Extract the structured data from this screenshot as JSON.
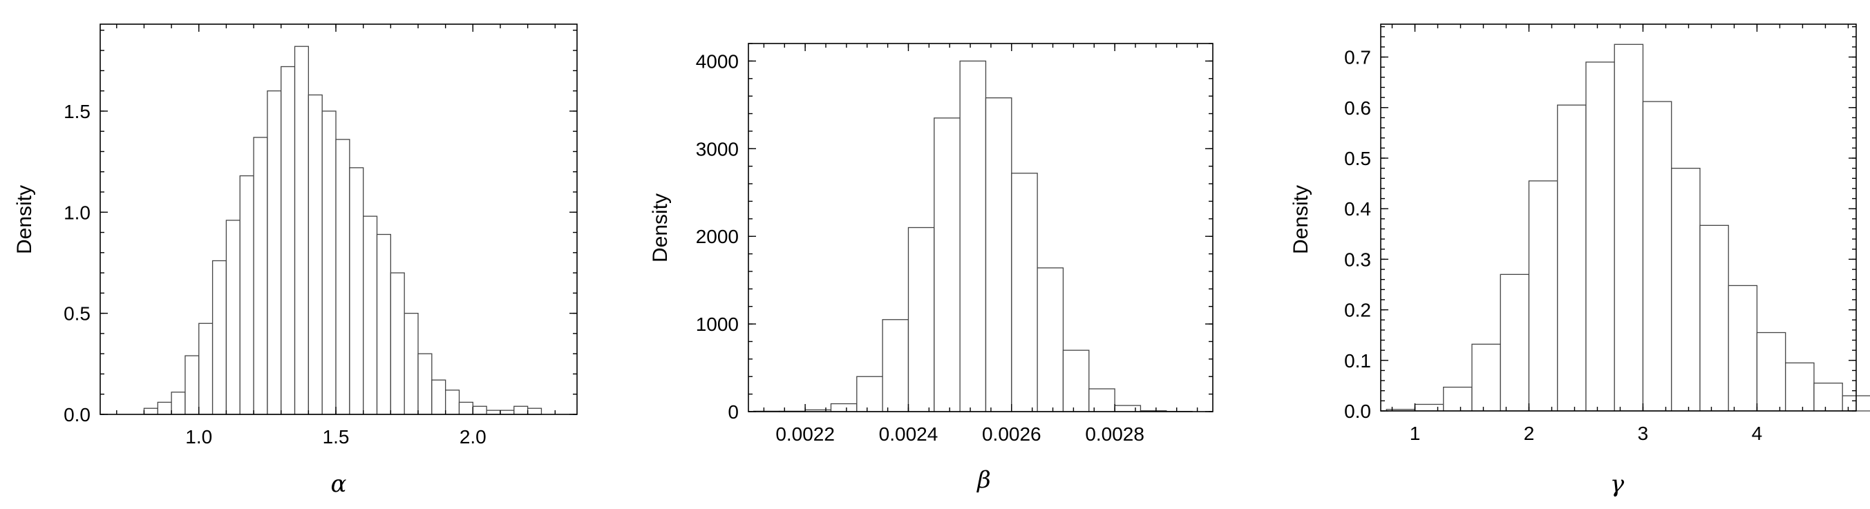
{
  "chart_data": [
    {
      "type": "bar",
      "histogram": true,
      "xlabel": "α",
      "ylabel": "Density",
      "xlim": [
        0.64,
        2.38
      ],
      "ylim": [
        0,
        1.93
      ],
      "xticks": [
        1.0,
        1.5,
        2.0
      ],
      "xtick_labels": [
        "1.0",
        "1.5",
        "2.0"
      ],
      "yticks": [
        0,
        0.5,
        1.0,
        1.5
      ],
      "ytick_labels": [
        "0.0",
        "0.5",
        "1.0",
        "1.5"
      ],
      "bin_start": 0.8,
      "bin_width": 0.05,
      "values": [
        0.03,
        0.06,
        0.11,
        0.29,
        0.45,
        0.76,
        0.96,
        1.18,
        1.37,
        1.6,
        1.72,
        1.82,
        1.58,
        1.5,
        1.36,
        1.22,
        0.98,
        0.89,
        0.7,
        0.5,
        0.3,
        0.17,
        0.12,
        0.06,
        0.04,
        0.02,
        0.02,
        0.04,
        0.03
      ],
      "grid": false,
      "legend": "none"
    },
    {
      "type": "bar",
      "histogram": true,
      "xlabel": "β",
      "ylabel": "Density",
      "xlim": [
        0.00209,
        0.00299
      ],
      "ylim": [
        0,
        4200
      ],
      "xticks": [
        0.0022,
        0.0024,
        0.0026,
        0.0028
      ],
      "xtick_labels": [
        "0.0022",
        "0.0024",
        "0.0026",
        "0.0028"
      ],
      "yticks": [
        0,
        1000,
        2000,
        3000,
        4000
      ],
      "ytick_labels": [
        "0",
        "1000",
        "2000",
        "3000",
        "4000"
      ],
      "bin_start": 0.0021,
      "bin_width": 5e-05,
      "values": [
        5,
        5,
        20,
        90,
        400,
        1050,
        2100,
        3350,
        4000,
        3580,
        2720,
        1640,
        700,
        260,
        70,
        10,
        3
      ],
      "grid": false,
      "legend": "none"
    },
    {
      "type": "bar",
      "histogram": true,
      "xlabel": "γ",
      "ylabel": "Density",
      "xlim": [
        0.7,
        4.87
      ],
      "ylim": [
        0,
        0.765
      ],
      "xticks": [
        1,
        2,
        3,
        4
      ],
      "xtick_labels": [
        "1",
        "2",
        "3",
        "4"
      ],
      "yticks": [
        0,
        0.1,
        0.2,
        0.3,
        0.4,
        0.5,
        0.6,
        0.7
      ],
      "ytick_labels": [
        "0.0",
        "0.1",
        "0.2",
        "0.3",
        "0.4",
        "0.5",
        "0.6",
        "0.7"
      ],
      "bin_start": 0.75,
      "bin_width": 0.25,
      "values": [
        0.003,
        0.013,
        0.047,
        0.132,
        0.27,
        0.455,
        0.605,
        0.69,
        0.725,
        0.612,
        0.48,
        0.367,
        0.248,
        0.155,
        0.095,
        0.055,
        0.03,
        0.015,
        0.008,
        0.005
      ],
      "grid": false,
      "legend": "none"
    }
  ]
}
